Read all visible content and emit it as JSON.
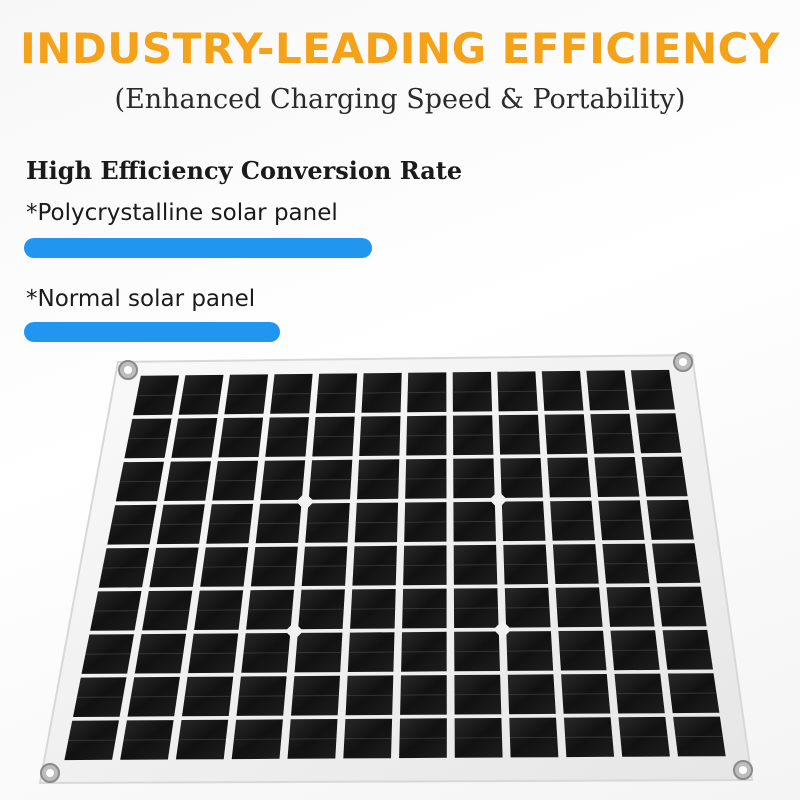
{
  "header": {
    "title": "INDUSTRY-LEADING EFFICIENCY",
    "subtitle": "(Enhanced Charging Speed & Portability)"
  },
  "section": {
    "heading": "High Efficiency Conversion Rate",
    "comparisons": [
      {
        "label": "*Polycrystalline solar panel",
        "bar_fraction": 0.87
      },
      {
        "label": "*Normal solar panel",
        "bar_fraction": 0.64
      }
    ]
  },
  "colors": {
    "title": "#f5a21b",
    "bar": "#2196f0",
    "cell": "#141414",
    "frame": "#f2f2f2"
  },
  "product_image": {
    "subject": "solar-panel",
    "cell_columns": 12,
    "cell_rows": 9
  }
}
